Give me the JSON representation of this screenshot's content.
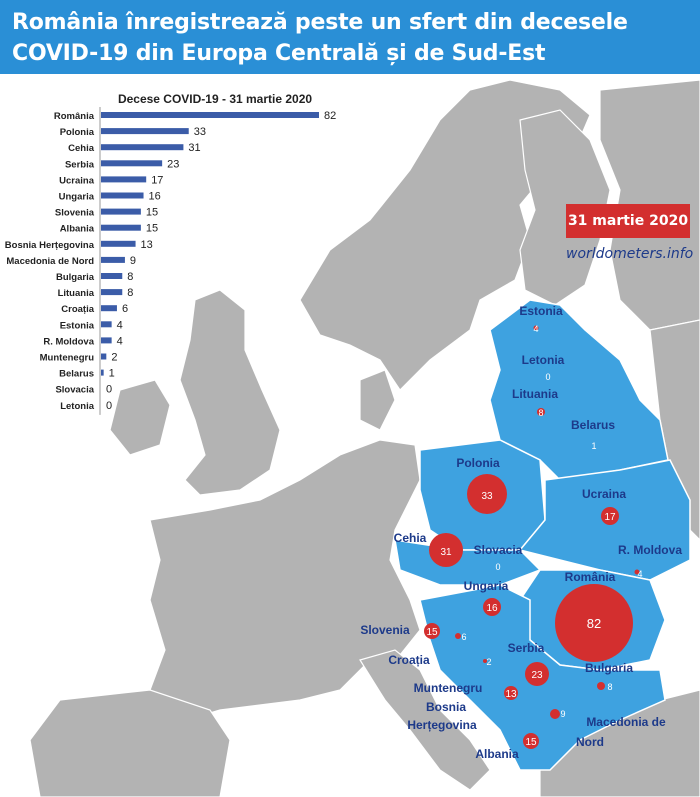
{
  "header": {
    "title_line1": "România înregistrează peste un sfert din decesele",
    "title_line2": "COVID-19 din Europa Centrală și de Sud-Est"
  },
  "date_badge": "31 martie 2020",
  "source": "worldometers.info",
  "colors": {
    "header_bg": "#2a8fd6",
    "region_fill": "#3ea2e0",
    "other_land": "#b3b3b3",
    "bubble": "#d32f2f",
    "bar": "#3b5ca8",
    "label": "#1d3a8a"
  },
  "chart_data": {
    "type": "bar",
    "orientation": "horizontal",
    "title": "Decese COVID-19 - 31 martie 2020",
    "categories": [
      "România",
      "Polonia",
      "Cehia",
      "Serbia",
      "Ucraina",
      "Ungaria",
      "Slovenia",
      "Albania",
      "Bosnia Herțegovina",
      "Macedonia de Nord",
      "Bulgaria",
      "Lituania",
      "Croația",
      "Estonia",
      "R. Moldova",
      "Muntenegru",
      "Belarus",
      "Slovacia",
      "Letonia"
    ],
    "values": [
      82,
      33,
      31,
      23,
      17,
      16,
      15,
      15,
      13,
      9,
      8,
      8,
      6,
      4,
      4,
      2,
      1,
      0,
      0
    ],
    "xlim": [
      0,
      82
    ]
  },
  "map_labels": [
    {
      "name": "Estonia",
      "value": "4"
    },
    {
      "name": "Letonia",
      "value": "0"
    },
    {
      "name": "Lituania",
      "value": "8"
    },
    {
      "name": "Belarus",
      "value": "1"
    },
    {
      "name": "Polonia",
      "value": "33"
    },
    {
      "name": "Ucraina",
      "value": "17"
    },
    {
      "name": "Cehia",
      "value": "31"
    },
    {
      "name": "Slovacia",
      "value": "0"
    },
    {
      "name": "R. Moldova",
      "value": "4"
    },
    {
      "name": "România",
      "value": "82"
    },
    {
      "name": "Ungaria",
      "value": "16"
    },
    {
      "name": "Slovenia",
      "value": "15"
    },
    {
      "name": "Croația",
      "value": "6"
    },
    {
      "name": "Serbia",
      "value": "23"
    },
    {
      "name": "Bulgaria",
      "value": "8"
    },
    {
      "name": "Muntenegru",
      "value": "2"
    },
    {
      "name": "Bosnia",
      "value": "13"
    },
    {
      "name": "Herțegovina",
      "value": ""
    },
    {
      "name": "Macedonia de",
      "value": "9"
    },
    {
      "name": "Nord",
      "value": ""
    },
    {
      "name": "Albania",
      "value": "15"
    }
  ]
}
